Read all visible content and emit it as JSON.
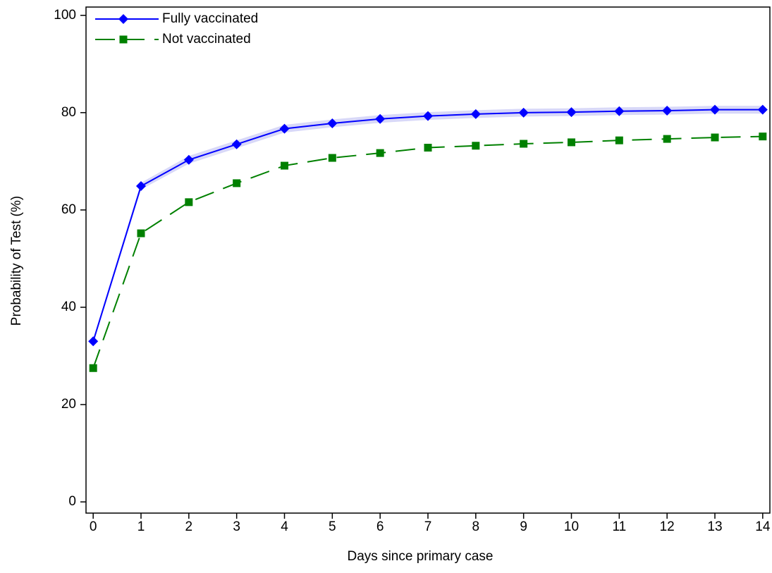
{
  "chart_data": {
    "type": "line",
    "x_label": "Days since primary case",
    "y_label": "Probability of Test (%)",
    "x": [
      0,
      1,
      2,
      3,
      4,
      5,
      6,
      7,
      8,
      9,
      10,
      11,
      12,
      13,
      14
    ],
    "series": [
      {
        "name": "Fully vaccinated",
        "color": "#0000ff",
        "line_style": "solid",
        "marker": "diamond",
        "band_color": "#d8d8f8",
        "values": [
          33.0,
          64.9,
          70.3,
          73.5,
          76.7,
          77.8,
          78.7,
          79.3,
          79.7,
          80.0,
          80.1,
          80.3,
          80.4,
          80.6,
          80.6
        ],
        "ci_lower": [
          32.5,
          64.2,
          69.5,
          72.7,
          75.9,
          77.0,
          77.9,
          78.5,
          78.9,
          79.2,
          79.3,
          79.5,
          79.6,
          79.8,
          79.8
        ],
        "ci_upper": [
          33.5,
          65.6,
          71.1,
          74.3,
          77.5,
          78.6,
          79.5,
          80.1,
          80.5,
          80.8,
          80.9,
          81.1,
          81.2,
          81.4,
          81.4
        ]
      },
      {
        "name": "Not vaccinated",
        "color": "#008000",
        "line_style": "dashed",
        "marker": "square",
        "values": [
          27.5,
          55.2,
          61.6,
          65.5,
          69.1,
          70.7,
          71.7,
          72.8,
          73.2,
          73.6,
          73.9,
          74.3,
          74.6,
          74.9,
          75.1
        ]
      }
    ],
    "xlim": [
      -0.15,
      14.15
    ],
    "xticks": [
      0,
      1,
      2,
      3,
      4,
      5,
      6,
      7,
      8,
      9,
      10,
      11,
      12,
      13,
      14
    ],
    "ylim": [
      -2.3,
      101.7
    ],
    "yticks": [
      0,
      20,
      40,
      60,
      80,
      100
    ],
    "legend": "top-left",
    "grid": false
  }
}
